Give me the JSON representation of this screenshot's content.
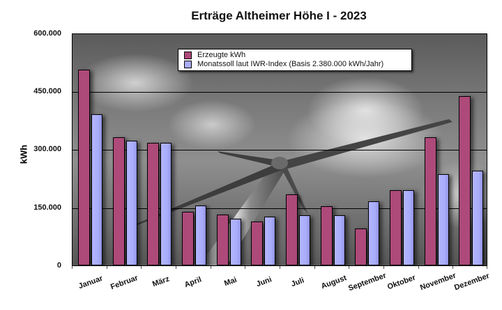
{
  "chart_data": {
    "type": "bar",
    "title": "Erträge Altheimer Höhe I - 2023",
    "xlabel": "",
    "ylabel": "kWh",
    "ylim": [
      0,
      600000
    ],
    "yticks": [
      "0",
      "150.000",
      "300.000",
      "450.000",
      "600.000"
    ],
    "ytick_values": [
      0,
      150000,
      300000,
      450000,
      600000
    ],
    "grid": true,
    "legend_position": "top-center inside plot",
    "categories": [
      "Januar",
      "Februar",
      "März",
      "April",
      "Mai",
      "Juni",
      "Juli",
      "August",
      "September",
      "Oktober",
      "November",
      "Dezember"
    ],
    "series": [
      {
        "name": "Erzeugte kWh",
        "color": "#ad4a7a",
        "values": [
          505000,
          330000,
          316000,
          139000,
          131000,
          114000,
          183000,
          152000,
          95000,
          194000,
          331000,
          436000
        ]
      },
      {
        "name": "Monatssoll laut IWR-Index (Basis 2.380.000 kWh/Jahr)",
        "color": "#a9acfa",
        "values": [
          389000,
          322000,
          317000,
          154000,
          120000,
          125000,
          129000,
          129000,
          165000,
          194000,
          235000,
          244000
        ]
      }
    ],
    "background": "grayscale photo of wind turbine against cloudy sky"
  },
  "title": "Erträge Altheimer Höhe I - 2023",
  "yaxis": {
    "label": "kWh",
    "ticks": [
      "600.000",
      "450.000",
      "300.000",
      "150.000",
      "0"
    ]
  },
  "legend": {
    "items": [
      {
        "label": "Erzeugte kWh",
        "color": "#ad4a7a"
      },
      {
        "label": "Monatssoll laut IWR-Index (Basis 2.380.000 kWh/Jahr)",
        "color": "#a9acfa"
      }
    ]
  }
}
